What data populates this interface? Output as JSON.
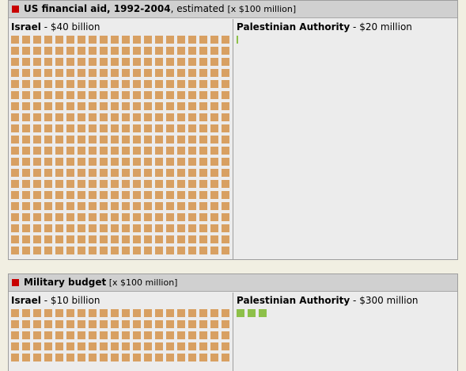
{
  "colors": {
    "israel": "#d8a062",
    "palestinian": "#8dc049",
    "header_marker": "#c80000"
  },
  "aid": {
    "title": "US financial aid, 1992-2004",
    "note": ", estimated ",
    "unit": "[x $100 million]",
    "israel_name": "Israel",
    "israel_amount": " - $40 billion",
    "pa_name": "Palestinian Authority",
    "pa_amount": " - $20 million"
  },
  "military": {
    "title": "Military budget",
    "unit": " [x $100 million]",
    "israel_name": "Israel",
    "israel_amount": " - $10 billion",
    "pa_name": "Palestinian Authority",
    "pa_amount": " - $300 million"
  },
  "chart_data": [
    {
      "type": "pictograph",
      "title": "US financial aid, 1992-2004, estimated [x $100 million]",
      "unit_value_million_usd": 100,
      "categories": [
        "Israel",
        "Palestinian Authority"
      ],
      "values_million_usd": [
        40000,
        20
      ],
      "units": [
        400,
        0.2
      ],
      "labels": [
        "Israel - $40 billion",
        "Palestinian Authority - $20 million"
      ]
    },
    {
      "type": "pictograph",
      "title": "Military budget [x $100 million]",
      "unit_value_million_usd": 100,
      "categories": [
        "Israel",
        "Palestinian Authority"
      ],
      "values_million_usd": [
        10000,
        300
      ],
      "units": [
        100,
        3
      ],
      "labels": [
        "Israel - $10 billion",
        "Palestinian Authority - $300 million"
      ]
    }
  ]
}
